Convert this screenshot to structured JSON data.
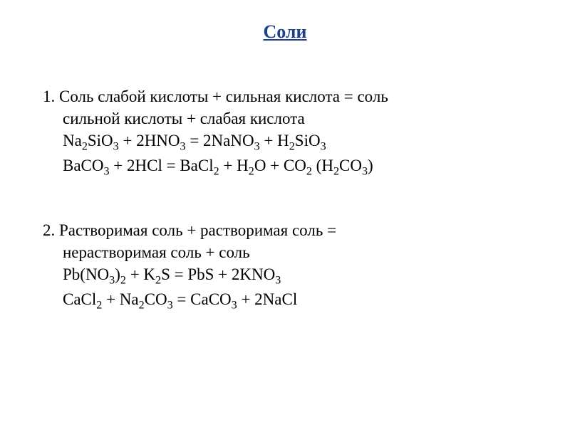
{
  "title": "Соли",
  "item1": {
    "line1": "1. Соль слабой кислоты + сильная кислота = соль",
    "line2": "сильной кислоты + слабая кислота",
    "formula1_parts": [
      "Na",
      "2",
      "SiO",
      "3",
      " + 2HNO",
      "3",
      " = 2NaNO",
      "3",
      " + H",
      "2",
      "SiO",
      "3"
    ],
    "formula2_parts": [
      "BaCO",
      "3",
      " + 2HCl = BaCl",
      "2",
      " + H",
      "2",
      "O + CO",
      "2",
      " (H",
      "2",
      "CO",
      "3",
      ")"
    ]
  },
  "item2": {
    "line1": "2. Растворимая соль + растворимая соль =",
    "line2": "нерастворимая соль + соль",
    "formula1_parts": [
      "Pb(NO",
      "3",
      ")",
      "2",
      " + K",
      "2",
      "S = PbS + 2KNO",
      "3"
    ],
    "formula2_parts": [
      "CaCl",
      "2",
      " + Na",
      "2",
      "CO",
      "3",
      " = CaCO",
      "3",
      " + 2NaCl"
    ]
  },
  "colors": {
    "title_color": "#1d3f8c",
    "text_color": "#000000",
    "background": "#ffffff"
  },
  "typography": {
    "title_fontsize": 26,
    "body_fontsize": 23,
    "font_family": "Times New Roman"
  }
}
